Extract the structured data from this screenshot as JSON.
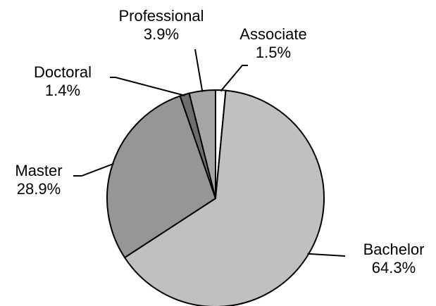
{
  "chart_data": {
    "type": "pie",
    "title": "",
    "start_angle_deg": 90,
    "direction": "clockwise",
    "slices": [
      {
        "name": "Associate",
        "value": 1.5,
        "label": "1.5%",
        "color": "#ffffff"
      },
      {
        "name": "Bachelor",
        "value": 64.3,
        "label": "64.3%",
        "color": "#c0c0c0"
      },
      {
        "name": "Master",
        "value": 28.9,
        "label": "28.9%",
        "color": "#969696"
      },
      {
        "name": "Doctoral",
        "value": 1.4,
        "label": "1.4%",
        "color": "#6e6e6e"
      },
      {
        "name": "Professional",
        "value": 3.9,
        "label": "3.9%",
        "color": "#a6a6a6"
      }
    ]
  }
}
